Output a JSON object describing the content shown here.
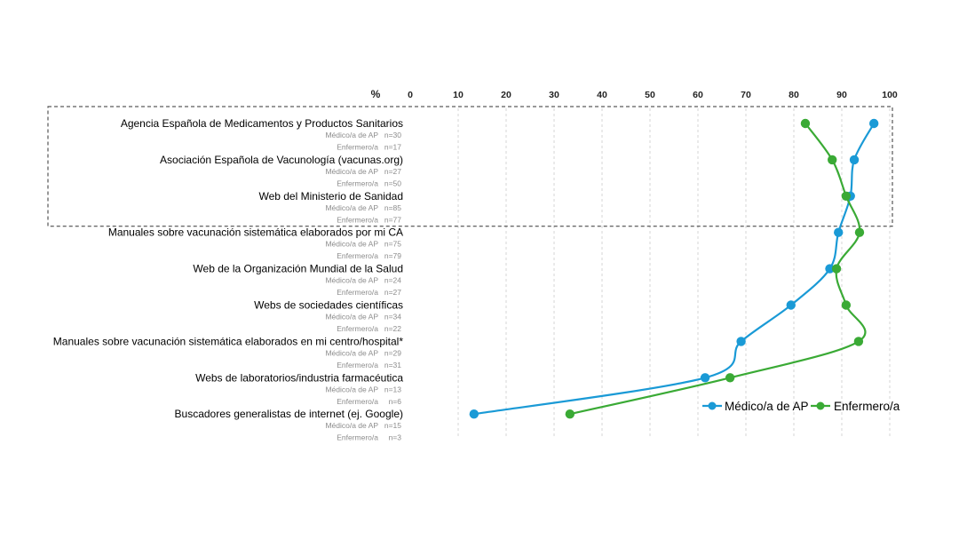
{
  "chart_data": {
    "type": "line",
    "orientation": "horizontal",
    "unit_label": "%",
    "xlim": [
      0,
      100
    ],
    "x_ticks": [
      "0",
      "10",
      "20",
      "30",
      "40",
      "50",
      "60",
      "70",
      "80",
      "90",
      "100"
    ],
    "grid": "vertical dashed",
    "legend_position": "bottom-right",
    "categories": [
      {
        "label": "Agencia Española de Medicamentos y Productos Sanitarios",
        "n": [
          {
            "group": "Médico/a de AP",
            "n": "n=30"
          },
          {
            "group": "Enfermero/a",
            "n": "n=17"
          }
        ]
      },
      {
        "label": "Asociación Española de Vacunología (vacunas.org)",
        "n": [
          {
            "group": "Médico/a de AP",
            "n": "n=27"
          },
          {
            "group": "Enfermero/a",
            "n": "n=50"
          }
        ]
      },
      {
        "label": "Web del Ministerio de Sanidad",
        "n": [
          {
            "group": "Médico/a de AP",
            "n": "n=85"
          },
          {
            "group": "Enfermero/a",
            "n": "n=77"
          }
        ]
      },
      {
        "label": "Manuales sobre vacunación sistemática elaborados por mi CA",
        "n": [
          {
            "group": "Médico/a de AP",
            "n": "n=75"
          },
          {
            "group": "Enfermero/a",
            "n": "n=79"
          }
        ]
      },
      {
        "label": "Web de la Organización Mundial de la Salud",
        "n": [
          {
            "group": "Médico/a de AP",
            "n": "n=24"
          },
          {
            "group": "Enfermero/a",
            "n": "n=27"
          }
        ]
      },
      {
        "label": "Webs de sociedades científicas",
        "n": [
          {
            "group": "Médico/a de AP",
            "n": "n=34"
          },
          {
            "group": "Enfermero/a",
            "n": "n=22"
          }
        ]
      },
      {
        "label": "Manuales sobre vacunación sistemática elaborados en mi centro/hospital*",
        "n": [
          {
            "group": "Médico/a de AP",
            "n": "n=29"
          },
          {
            "group": "Enfermero/a",
            "n": "n=31"
          }
        ]
      },
      {
        "label": "Webs de laboratorios/industria farmacéutica",
        "n": [
          {
            "group": "Médico/a de AP",
            "n": "n=13"
          },
          {
            "group": "Enfermero/a",
            "n": "n=6"
          }
        ]
      },
      {
        "label": "Buscadores generalistas de internet (ej. Google)",
        "n": [
          {
            "group": "Médico/a de AP",
            "n": "n=15"
          },
          {
            "group": "Enfermero/a",
            "n": "n=3"
          }
        ]
      }
    ],
    "series": [
      {
        "name": "Médico/a de AP",
        "color": "#1a9ad6",
        "values": [
          96.7,
          92.6,
          91.8,
          89.3,
          87.5,
          79.4,
          69.0,
          61.5,
          13.3
        ]
      },
      {
        "name": "Enfermero/a",
        "color": "#3aaa35",
        "values": [
          82.4,
          88.0,
          90.9,
          93.7,
          88.9,
          90.9,
          93.5,
          66.7,
          33.3
        ]
      }
    ],
    "highlight_box": {
      "style": "dashed",
      "categories": [
        0,
        1,
        2
      ]
    }
  }
}
